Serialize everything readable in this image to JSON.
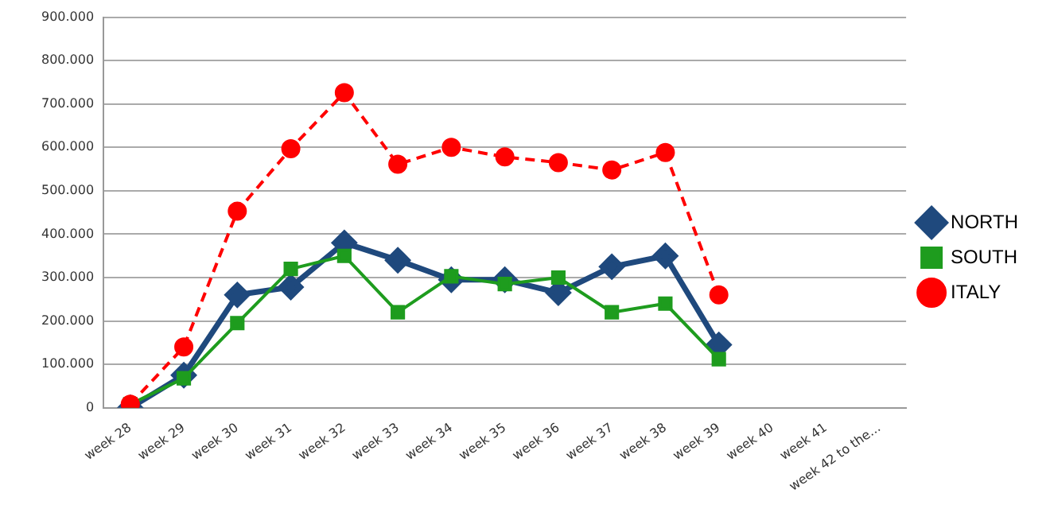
{
  "chart_data": {
    "type": "line",
    "categories": [
      "week 28",
      "week 29",
      "week 30",
      "week 31",
      "week 32",
      "week 33",
      "week 34",
      "week 35",
      "week 36",
      "week 37",
      "week 38",
      "week 39",
      "week 40",
      "week 41",
      "week 42 to the..."
    ],
    "series": [
      {
        "name": "NORTH",
        "color": "#1f497d",
        "marker": "diamond",
        "line_style": "solid",
        "values": [
          0,
          75000,
          260000,
          278000,
          380000,
          340000,
          295000,
          295000,
          265000,
          325000,
          350000,
          145000,
          null,
          null,
          null
        ]
      },
      {
        "name": "SOUTH",
        "color": "#1e9c1e",
        "marker": "square",
        "line_style": "solid",
        "values": [
          8000,
          68000,
          195000,
          320000,
          350000,
          220000,
          303000,
          285000,
          300000,
          220000,
          240000,
          112000,
          null,
          null,
          null
        ]
      },
      {
        "name": "ITALY",
        "color": "#ff0000",
        "marker": "circle",
        "line_style": "dashed",
        "values": [
          8000,
          140000,
          453000,
          597000,
          726000,
          561000,
          600000,
          578000,
          565000,
          548000,
          588000,
          260000,
          null,
          null,
          null
        ]
      }
    ],
    "ylim": [
      0,
      900000
    ],
    "yticks": [
      {
        "value": 0,
        "label": "0"
      },
      {
        "value": 100000,
        "label": "100.000"
      },
      {
        "value": 200000,
        "label": "200.000"
      },
      {
        "value": 300000,
        "label": "300.000"
      },
      {
        "value": 400000,
        "label": "400.000"
      },
      {
        "value": 500000,
        "label": "500.000"
      },
      {
        "value": 600000,
        "label": "600.000"
      },
      {
        "value": 700000,
        "label": "700.000"
      },
      {
        "value": 800000,
        "label": "800.000"
      },
      {
        "value": 900000,
        "label": "900.000"
      }
    ],
    "grid": "y",
    "legend": "right"
  }
}
